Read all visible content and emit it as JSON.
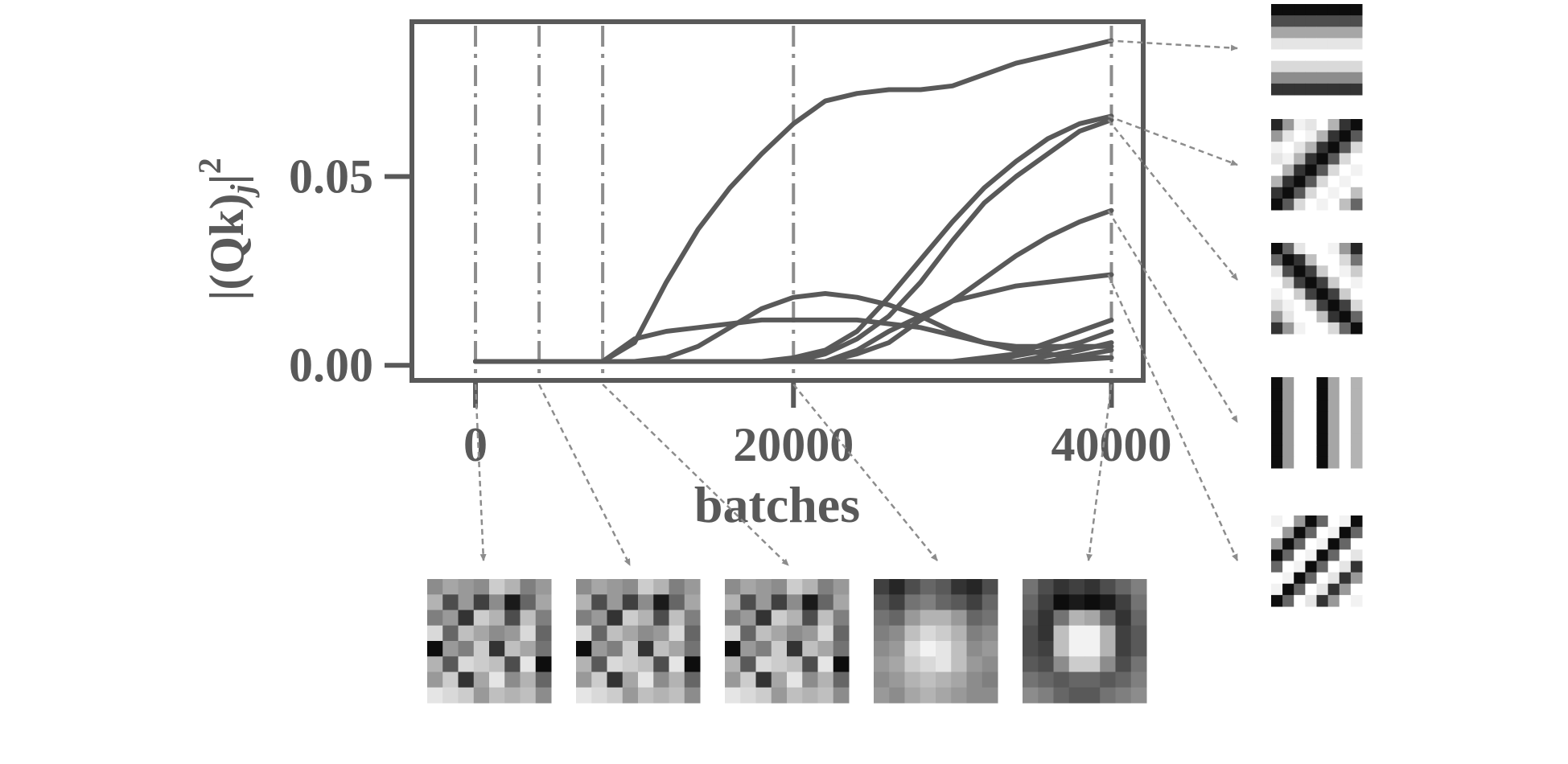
{
  "chart_data": {
    "type": "line",
    "title": "",
    "xlabel": "batches",
    "ylabel": "|(Qk)_j|^2",
    "ylabel_parts": {
      "base": "|(Qk)",
      "sub": "j",
      "tail": "|",
      "sup": "2"
    },
    "xlim": [
      -4000,
      42000
    ],
    "ylim": [
      -0.004,
      0.091
    ],
    "xticks": [
      {
        "value": 0,
        "label": "0"
      },
      {
        "value": 20000,
        "label": "20000"
      },
      {
        "value": 40000,
        "label": "40000"
      }
    ],
    "yticks": [
      {
        "value": 0.0,
        "label": "0.00"
      },
      {
        "value": 0.05,
        "label": "0.05"
      }
    ],
    "grid": false,
    "legend": "none",
    "snapshot_batches": [
      0,
      4000,
      8000,
      20000,
      40000
    ],
    "color_line": "#595959",
    "color_marker": "#8c8c8c",
    "series": [
      {
        "x": [
          0,
          8000,
          10000,
          12000,
          14000,
          16000,
          18000,
          20000,
          22000,
          24000,
          26000,
          28000,
          30000,
          32000,
          34000,
          36000,
          38000,
          40000
        ],
        "values": [
          0.001,
          0.001,
          0.006,
          0.022,
          0.036,
          0.047,
          0.056,
          0.064,
          0.07,
          0.072,
          0.073,
          0.073,
          0.074,
          0.077,
          0.08,
          0.082,
          0.084,
          0.086
        ]
      },
      {
        "x": [
          0,
          18000,
          20000,
          22000,
          24000,
          26000,
          28000,
          30000,
          32000,
          34000,
          36000,
          38000,
          40000
        ],
        "values": [
          0.001,
          0.001,
          0.002,
          0.004,
          0.009,
          0.018,
          0.028,
          0.038,
          0.047,
          0.054,
          0.06,
          0.064,
          0.066
        ]
      },
      {
        "x": [
          0,
          20000,
          22000,
          24000,
          26000,
          28000,
          30000,
          32000,
          34000,
          36000,
          38000,
          40000
        ],
        "values": [
          0.001,
          0.001,
          0.003,
          0.007,
          0.013,
          0.022,
          0.033,
          0.043,
          0.05,
          0.056,
          0.062,
          0.065
        ]
      },
      {
        "x": [
          0,
          22000,
          24000,
          26000,
          28000,
          30000,
          32000,
          34000,
          36000,
          38000,
          40000
        ],
        "values": [
          0.001,
          0.001,
          0.003,
          0.006,
          0.012,
          0.017,
          0.023,
          0.029,
          0.034,
          0.038,
          0.041
        ]
      },
      {
        "x": [
          0,
          10000,
          12000,
          14000,
          16000,
          18000,
          20000,
          22000,
          24000,
          26000,
          28000,
          30000,
          32000,
          34000,
          36000,
          38000,
          40000
        ],
        "values": [
          0.001,
          0.001,
          0.002,
          0.005,
          0.01,
          0.015,
          0.018,
          0.019,
          0.018,
          0.016,
          0.013,
          0.009,
          0.006,
          0.004,
          0.003,
          0.002,
          0.002
        ]
      },
      {
        "x": [
          0,
          8000,
          10000,
          12000,
          14000,
          16000,
          18000,
          20000,
          22000,
          24000,
          26000,
          28000,
          30000,
          32000,
          34000,
          36000,
          38000,
          40000
        ],
        "values": [
          0.001,
          0.001,
          0.007,
          0.009,
          0.01,
          0.011,
          0.012,
          0.012,
          0.012,
          0.012,
          0.011,
          0.01,
          0.008,
          0.006,
          0.005,
          0.005,
          0.005,
          0.005
        ]
      },
      {
        "x": [
          0,
          22000,
          24000,
          26000,
          28000,
          30000,
          32000,
          34000,
          36000,
          38000,
          40000
        ],
        "values": [
          0.001,
          0.001,
          0.004,
          0.009,
          0.013,
          0.017,
          0.019,
          0.021,
          0.022,
          0.023,
          0.024
        ]
      },
      {
        "x": [
          0,
          30000,
          34000,
          36000,
          38000,
          40000
        ],
        "values": [
          0.001,
          0.001,
          0.003,
          0.006,
          0.009,
          0.012
        ]
      },
      {
        "x": [
          0,
          32000,
          36000,
          38000,
          40000
        ],
        "values": [
          0.001,
          0.001,
          0.004,
          0.006,
          0.009
        ]
      },
      {
        "x": [
          0,
          34000,
          38000,
          40000
        ],
        "values": [
          0.001,
          0.001,
          0.004,
          0.006
        ]
      },
      {
        "x": [
          0,
          36000,
          40000
        ],
        "values": [
          0.001,
          0.001,
          0.004
        ]
      },
      {
        "x": [
          0,
          36000,
          40000
        ],
        "values": [
          0.001,
          0.001,
          0.002
        ]
      }
    ]
  },
  "filter_images": {
    "bottom": [
      {
        "batch": 0,
        "pixels": [
          [
            55,
            65,
            60,
            55,
            80,
            70,
            50,
            60
          ],
          [
            70,
            30,
            60,
            25,
            55,
            10,
            40,
            65
          ],
          [
            50,
            60,
            20,
            80,
            70,
            30,
            75,
            50
          ],
          [
            85,
            40,
            75,
            65,
            55,
            60,
            85,
            40
          ],
          [
            5,
            60,
            50,
            80,
            20,
            75,
            65,
            45
          ],
          [
            70,
            35,
            85,
            80,
            75,
            30,
            90,
            5
          ],
          [
            60,
            80,
            20,
            65,
            90,
            55,
            70,
            40
          ],
          [
            90,
            85,
            80,
            60,
            75,
            70,
            75,
            55
          ]
        ]
      },
      {
        "batch": 4000,
        "pixels": [
          [
            55,
            65,
            60,
            55,
            80,
            70,
            50,
            60
          ],
          [
            70,
            30,
            60,
            25,
            55,
            10,
            40,
            65
          ],
          [
            50,
            60,
            20,
            80,
            70,
            30,
            75,
            50
          ],
          [
            85,
            40,
            75,
            65,
            55,
            60,
            85,
            40
          ],
          [
            5,
            60,
            50,
            80,
            20,
            75,
            65,
            45
          ],
          [
            70,
            35,
            85,
            80,
            75,
            30,
            90,
            5
          ],
          [
            60,
            80,
            20,
            65,
            90,
            55,
            70,
            40
          ],
          [
            90,
            85,
            80,
            60,
            75,
            70,
            75,
            55
          ]
        ]
      },
      {
        "batch": 8000,
        "pixels": [
          [
            55,
            65,
            60,
            55,
            80,
            70,
            50,
            60
          ],
          [
            70,
            30,
            60,
            25,
            55,
            10,
            40,
            65
          ],
          [
            50,
            60,
            20,
            80,
            70,
            30,
            75,
            50
          ],
          [
            85,
            40,
            75,
            65,
            55,
            60,
            85,
            40
          ],
          [
            5,
            60,
            50,
            80,
            20,
            75,
            65,
            45
          ],
          [
            70,
            35,
            85,
            80,
            75,
            30,
            90,
            5
          ],
          [
            60,
            80,
            20,
            65,
            90,
            55,
            70,
            40
          ],
          [
            90,
            85,
            80,
            60,
            75,
            70,
            75,
            55
          ]
        ]
      },
      {
        "batch": 20000,
        "pixels": [
          [
            25,
            15,
            30,
            40,
            35,
            20,
            15,
            30
          ],
          [
            35,
            25,
            45,
            50,
            40,
            35,
            25,
            40
          ],
          [
            45,
            40,
            60,
            70,
            70,
            60,
            40,
            45
          ],
          [
            50,
            55,
            75,
            85,
            80,
            70,
            50,
            55
          ],
          [
            55,
            60,
            85,
            95,
            90,
            75,
            55,
            60
          ],
          [
            60,
            65,
            80,
            85,
            90,
            75,
            60,
            55
          ],
          [
            55,
            60,
            70,
            75,
            70,
            65,
            55,
            50
          ],
          [
            60,
            55,
            65,
            70,
            65,
            60,
            55,
            55
          ]
        ]
      },
      {
        "batch": 40000,
        "pixels": [
          [
            45,
            30,
            20,
            25,
            20,
            30,
            40,
            50
          ],
          [
            40,
            25,
            5,
            10,
            5,
            10,
            25,
            45
          ],
          [
            35,
            20,
            45,
            70,
            65,
            40,
            20,
            40
          ],
          [
            30,
            20,
            75,
            95,
            95,
            70,
            25,
            35
          ],
          [
            30,
            25,
            75,
            95,
            95,
            70,
            25,
            35
          ],
          [
            35,
            30,
            55,
            80,
            80,
            55,
            30,
            45
          ],
          [
            45,
            40,
            35,
            40,
            40,
            35,
            40,
            50
          ],
          [
            55,
            50,
            40,
            35,
            35,
            45,
            50,
            55
          ]
        ]
      }
    ],
    "right": [
      {
        "pixels": [
          [
            5,
            5,
            5,
            5,
            5,
            5,
            5,
            5
          ],
          [
            30,
            30,
            30,
            30,
            30,
            30,
            30,
            30
          ],
          [
            65,
            65,
            65,
            65,
            65,
            65,
            65,
            65
          ],
          [
            90,
            90,
            90,
            90,
            90,
            90,
            90,
            90
          ],
          [
            100,
            100,
            100,
            100,
            100,
            100,
            100,
            100
          ],
          [
            85,
            85,
            85,
            85,
            85,
            85,
            85,
            85
          ],
          [
            55,
            55,
            55,
            55,
            55,
            55,
            55,
            55
          ],
          [
            20,
            20,
            20,
            20,
            20,
            20,
            20,
            20
          ]
        ]
      },
      {
        "pixels": [
          [
            15,
            60,
            95,
            90,
            100,
            70,
            20,
            5
          ],
          [
            60,
            90,
            100,
            95,
            70,
            20,
            5,
            35
          ],
          [
            95,
            100,
            90,
            70,
            20,
            5,
            35,
            85
          ],
          [
            90,
            95,
            70,
            20,
            5,
            35,
            85,
            100
          ],
          [
            100,
            70,
            20,
            5,
            35,
            85,
            100,
            95
          ],
          [
            70,
            20,
            5,
            35,
            85,
            100,
            95,
            100
          ],
          [
            20,
            5,
            35,
            85,
            100,
            95,
            100,
            75
          ],
          [
            5,
            35,
            85,
            100,
            95,
            100,
            75,
            40
          ]
        ]
      },
      {
        "pixels": [
          [
            5,
            40,
            90,
            100,
            100,
            95,
            60,
            15
          ],
          [
            40,
            5,
            20,
            75,
            100,
            100,
            85,
            45
          ],
          [
            90,
            30,
            5,
            25,
            80,
            100,
            95,
            80
          ],
          [
            100,
            80,
            25,
            5,
            25,
            80,
            100,
            95
          ],
          [
            95,
            100,
            80,
            25,
            5,
            25,
            80,
            100
          ],
          [
            85,
            95,
            100,
            80,
            25,
            5,
            25,
            85
          ],
          [
            60,
            90,
            100,
            100,
            75,
            20,
            5,
            40
          ],
          [
            20,
            60,
            95,
            100,
            100,
            85,
            40,
            5
          ]
        ]
      },
      {
        "pixels": [
          [
            5,
            60,
            100,
            100,
            5,
            65,
            100,
            70
          ],
          [
            5,
            60,
            100,
            100,
            5,
            65,
            100,
            70
          ],
          [
            5,
            60,
            100,
            100,
            5,
            65,
            100,
            70
          ],
          [
            5,
            60,
            100,
            100,
            5,
            65,
            100,
            70
          ],
          [
            5,
            60,
            100,
            100,
            5,
            65,
            100,
            70
          ],
          [
            5,
            60,
            100,
            100,
            5,
            65,
            100,
            70
          ],
          [
            5,
            60,
            100,
            100,
            5,
            65,
            100,
            70
          ],
          [
            5,
            60,
            100,
            100,
            5,
            65,
            100,
            70
          ]
        ]
      },
      {
        "pixels": [
          [
            95,
            100,
            60,
            5,
            40,
            100,
            95,
            5
          ],
          [
            100,
            60,
            5,
            40,
            100,
            95,
            5,
            40
          ],
          [
            60,
            5,
            40,
            100,
            95,
            5,
            40,
            100
          ],
          [
            5,
            40,
            100,
            95,
            5,
            40,
            100,
            90
          ],
          [
            40,
            100,
            95,
            5,
            40,
            100,
            90,
            20
          ],
          [
            100,
            95,
            5,
            40,
            100,
            90,
            20,
            60
          ],
          [
            95,
            5,
            40,
            100,
            90,
            20,
            60,
            100
          ],
          [
            5,
            40,
            100,
            90,
            20,
            60,
            100,
            95
          ]
        ]
      }
    ]
  }
}
